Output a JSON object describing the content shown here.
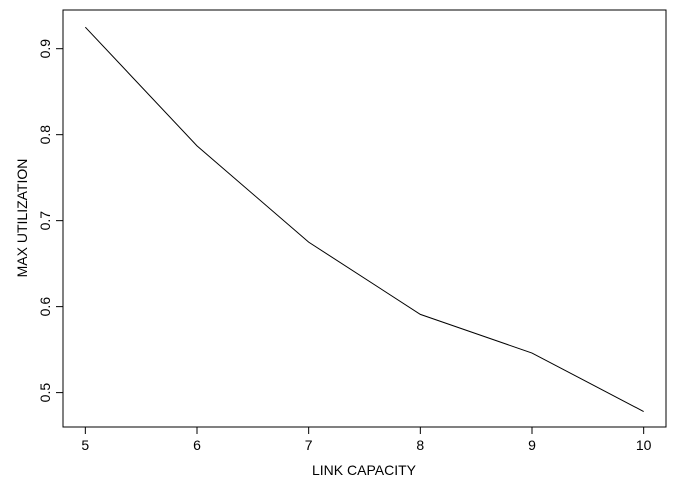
{
  "chart_data": {
    "type": "line",
    "title": "",
    "xlabel": "LINK CAPACITY",
    "ylabel": "MAX UTILIZATION",
    "x": [
      5,
      6,
      7,
      8,
      9,
      10
    ],
    "y": [
      0.925,
      0.787,
      0.675,
      0.591,
      0.546,
      0.478
    ],
    "xlim": [
      4.8,
      10.2
    ],
    "ylim": [
      0.46,
      0.945
    ],
    "xticks": [
      5,
      6,
      7,
      8,
      9,
      10
    ],
    "xtick_labels": [
      "5",
      "6",
      "7",
      "8",
      "9",
      "10"
    ],
    "yticks": [
      0.5,
      0.6,
      0.7,
      0.8,
      0.9
    ],
    "ytick_labels": [
      "0.5",
      "0.6",
      "0.7",
      "0.8",
      "0.9"
    ],
    "grid": false,
    "legend": "none",
    "line_color": "#000000"
  }
}
